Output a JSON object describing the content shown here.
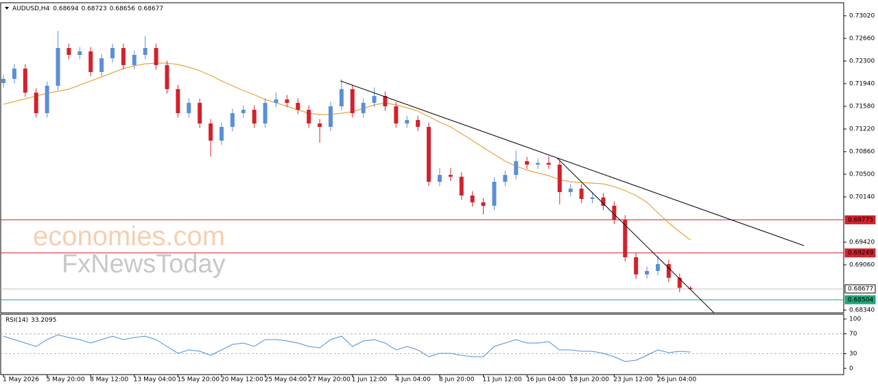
{
  "chart_data": {
    "type": "candlestick",
    "symbol": "AUDUSD,H4",
    "watermark": [
      "economies.com",
      "FxNewsToday"
    ],
    "categories": [
      "1 May 2026",
      null,
      null,
      null,
      "5 May 20:00",
      null,
      null,
      null,
      "8 May 12:00",
      null,
      null,
      null,
      "13 May 04:00",
      null,
      null,
      null,
      "15 May 20:00",
      null,
      null,
      null,
      "20 May 12:00",
      null,
      null,
      null,
      "25 May 04:00",
      null,
      null,
      null,
      "27 May 20:00",
      null,
      null,
      null,
      "1 Jun 12:00",
      null,
      null,
      null,
      "4 Jun 04:00",
      null,
      null,
      null,
      "8 Jun 20:00",
      null,
      null,
      null,
      "11 Jun 12:00",
      null,
      null,
      null,
      "16 Jun 04:00",
      null,
      null,
      null,
      "18 Jun 20:00",
      null,
      null,
      null,
      "23 Jun 12:00",
      null,
      null,
      null,
      "26 Jun 04:00",
      null,
      null,
      null
    ],
    "open": [
      0.7195,
      0.72016,
      0.7218,
      0.71798,
      0.71471,
      0.71907,
      0.72507,
      0.72398,
      0.72453,
      0.72125,
      0.72344,
      0.72507,
      0.72235,
      0.72398,
      0.72507,
      0.72235,
      0.71853,
      0.71471,
      0.71635,
      0.71307,
      0.71035,
      0.71253,
      0.71471,
      0.71525,
      0.71307,
      0.71635,
      0.71689,
      0.71635,
      0.71525,
      0.71307,
      0.71253,
      0.7158,
      0.71853,
      0.71471,
      0.71635,
      0.71744,
      0.7158,
      0.71307,
      0.71362,
      0.71253,
      0.7038,
      0.70489,
      0.7046,
      0.70162,
      0.70053,
      0.69998,
      0.7038,
      0.70489,
      0.70707,
      0.70653,
      0.7068,
      0.70653,
      0.70216,
      0.70271,
      0.70107,
      0.7013,
      0.69998,
      0.6978,
      0.6918,
      0.68907,
      0.68962,
      0.69071,
      0.68853,
      0.68694
    ],
    "high": [
      0.72086,
      0.7225,
      0.7225,
      0.71868,
      0.71977,
      0.7278,
      0.72577,
      0.72523,
      0.72523,
      0.72414,
      0.72577,
      0.72577,
      0.72468,
      0.727,
      0.72577,
      0.72305,
      0.71923,
      0.71705,
      0.71705,
      0.71377,
      0.71323,
      0.71541,
      0.71595,
      0.71595,
      0.71705,
      0.718,
      0.71759,
      0.71705,
      0.71595,
      0.71377,
      0.7165,
      0.7201,
      0.71923,
      0.71705,
      0.7188,
      0.71814,
      0.7165,
      0.71432,
      0.71432,
      0.71323,
      0.706,
      0.706,
      0.7053,
      0.70232,
      0.70123,
      0.7045,
      0.70559,
      0.7088,
      0.70777,
      0.7075,
      0.7079,
      0.70723,
      0.70341,
      0.70341,
      0.702,
      0.702,
      0.70068,
      0.6985,
      0.6925,
      0.69032,
      0.692,
      0.69141,
      0.68923,
      0.68723
    ],
    "low": [
      0.7188,
      0.71946,
      0.71728,
      0.71401,
      0.71401,
      0.71837,
      0.72328,
      0.72328,
      0.72055,
      0.72055,
      0.72274,
      0.72165,
      0.72165,
      0.72328,
      0.72165,
      0.71783,
      0.71401,
      0.71401,
      0.71237,
      0.7078,
      0.70965,
      0.71183,
      0.71401,
      0.71237,
      0.71237,
      0.71565,
      0.71565,
      0.71455,
      0.71237,
      0.71,
      0.71183,
      0.7151,
      0.71401,
      0.71401,
      0.71565,
      0.7151,
      0.71237,
      0.71237,
      0.71183,
      0.7031,
      0.7031,
      0.7039,
      0.70092,
      0.69983,
      0.6986,
      0.69928,
      0.7031,
      0.70419,
      0.70583,
      0.70583,
      0.70583,
      0.7002,
      0.70146,
      0.70037,
      0.70037,
      0.69928,
      0.6971,
      0.6911,
      0.68837,
      0.68837,
      0.68892,
      0.68783,
      0.68624,
      0.68656
    ],
    "close": [
      0.72016,
      0.7218,
      0.71798,
      0.71471,
      0.71907,
      0.72507,
      0.72398,
      0.72453,
      0.72125,
      0.72344,
      0.72507,
      0.72235,
      0.72398,
      0.72507,
      0.72235,
      0.71853,
      0.71471,
      0.71635,
      0.71307,
      0.71035,
      0.71253,
      0.71471,
      0.71525,
      0.71307,
      0.71635,
      0.71689,
      0.71635,
      0.71525,
      0.71307,
      0.71253,
      0.7158,
      0.71853,
      0.71471,
      0.71635,
      0.71744,
      0.7158,
      0.71307,
      0.71362,
      0.71253,
      0.7038,
      0.70489,
      0.7046,
      0.70162,
      0.70053,
      0.69998,
      0.7038,
      0.70489,
      0.70707,
      0.70653,
      0.7068,
      0.70653,
      0.70216,
      0.70271,
      0.70107,
      0.7013,
      0.69998,
      0.6978,
      0.6918,
      0.68907,
      0.68962,
      0.69071,
      0.68853,
      0.68694,
      0.68677
    ],
    "up_color": "#5b8fd6",
    "down_color": "#d2222d",
    "moving_average": {
      "color": "#e8a33c",
      "values": [
        0.71613,
        0.71656,
        0.717,
        0.71744,
        0.71787,
        0.7182,
        0.71853,
        0.71918,
        0.71984,
        0.72049,
        0.72115,
        0.7218,
        0.72224,
        0.72256,
        0.72267,
        0.72267,
        0.72245,
        0.72202,
        0.72147,
        0.72071,
        0.71984,
        0.71907,
        0.71831,
        0.71765,
        0.71689,
        0.71635,
        0.7158,
        0.71525,
        0.71471,
        0.71449,
        0.71449,
        0.71471,
        0.71493,
        0.71547,
        0.71602,
        0.71635,
        0.71602,
        0.71558,
        0.71504,
        0.71416,
        0.71329,
        0.71253,
        0.71144,
        0.71035,
        0.70925,
        0.70816,
        0.70707,
        0.70631,
        0.70565,
        0.70522,
        0.70478,
        0.70413,
        0.7038,
        0.70369,
        0.70358,
        0.70347,
        0.70304,
        0.70238,
        0.70162,
        0.70053,
        0.69889,
        0.69725,
        0.69584,
        0.69453
      ]
    },
    "ylim": [
      0.68307,
      0.73216
    ],
    "yticks": [
      {
        "value": 0.7302,
        "label": "0.73020"
      },
      {
        "value": 0.7266,
        "label": "0.72660"
      },
      {
        "value": 0.723,
        "label": "0.72300"
      },
      {
        "value": 0.7194,
        "label": "0.71940"
      },
      {
        "value": 0.7158,
        "label": "0.71580"
      },
      {
        "value": 0.7122,
        "label": "0.71220"
      },
      {
        "value": 0.7086,
        "label": "0.70860"
      },
      {
        "value": 0.705,
        "label": "0.70500"
      },
      {
        "value": 0.7014,
        "label": "0.70140"
      },
      {
        "value": 0.6942,
        "label": "0.69420"
      },
      {
        "value": 0.6906,
        "label": "0.69060"
      },
      {
        "value": 0.6834,
        "label": "0.68340"
      }
    ],
    "levels": [
      {
        "value": 0.69775,
        "color": "#d2222d"
      },
      {
        "value": 0.69249,
        "color": "#d2222d"
      },
      {
        "value": 0.68677,
        "color": "#c0c0c0"
      },
      {
        "value": 0.68504,
        "color": "#1fa67a"
      }
    ],
    "trendlines": [
      {
        "x": [
          30.9,
          73.4
        ],
        "y": [
          0.71984,
          0.69365
        ]
      },
      {
        "x": [
          50.75,
          65.6
        ],
        "y": [
          0.70762,
          0.6822
        ]
      }
    ],
    "rsi": {
      "name": "RSI(14)",
      "color": "#4a8fd9",
      "values": [
        65.3,
        58.3,
        51.4,
        44.4,
        58.3,
        68.1,
        62.5,
        58.3,
        51.4,
        58.3,
        65.3,
        58.3,
        62.5,
        65.3,
        58.3,
        44.4,
        30.6,
        37.5,
        34.7,
        26.4,
        37.5,
        48.6,
        51.4,
        44.4,
        58.3,
        58.3,
        55.6,
        51.4,
        44.4,
        41.7,
        58.3,
        65.3,
        44.4,
        55.6,
        58.3,
        51.4,
        37.5,
        44.4,
        37.5,
        23.6,
        30.6,
        30.6,
        26.4,
        23.6,
        23.6,
        44.4,
        51.4,
        58.3,
        51.4,
        51.4,
        54.2,
        37.5,
        37.5,
        34.7,
        34.7,
        30.6,
        23.6,
        13.9,
        16.7,
        26.4,
        37.5,
        31.9,
        34.7,
        33.2095
      ],
      "ylim": [
        -11.1,
        109.7
      ],
      "yticks": [
        100,
        70,
        30,
        0
      ],
      "levels": [
        70,
        30
      ]
    }
  }
}
